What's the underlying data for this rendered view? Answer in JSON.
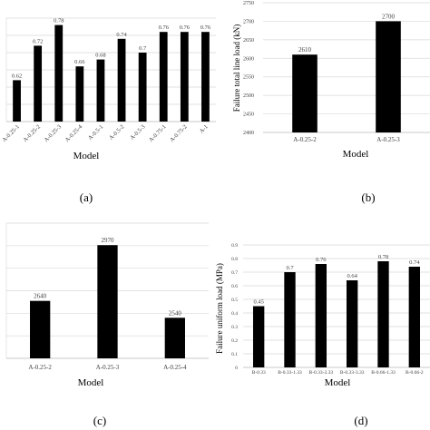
{
  "chart_data": [
    {
      "type": "bar",
      "panel_label": "(a)",
      "xlabel": "Model",
      "ylabel": "",
      "ylim": [
        0.5,
        0.8
      ],
      "grid": true,
      "categories": [
        "A-0.25-1",
        "A-0.25-2",
        "A-0.25-3",
        "A-0.25-4",
        "A-0.5-1",
        "A-0.5-2",
        "A-0.5-3",
        "A-0.75-1",
        "A-0.75-2",
        "A-1"
      ],
      "values": [
        0.62,
        0.72,
        0.78,
        0.66,
        0.68,
        0.74,
        0.7,
        0.76,
        0.76,
        0.76
      ],
      "value_labels": [
        "0.62",
        "0.72",
        "0.78",
        "0.66",
        "0.68",
        "0.74",
        "0.7",
        "0.76",
        "0.76",
        "0.76"
      ]
    },
    {
      "type": "bar",
      "panel_label": "(b)",
      "xlabel": "Model",
      "ylabel": "Failure total line load (kN)",
      "ylim": [
        2400,
        2750
      ],
      "yticks": [
        "2400",
        "2450",
        "2500",
        "2550",
        "2600",
        "2650",
        "2700",
        "2750"
      ],
      "grid": true,
      "categories": [
        "A-0.25-2",
        "A-0.25-3"
      ],
      "values": [
        2610,
        2700
      ],
      "value_labels": [
        "2610",
        "2700"
      ]
    },
    {
      "type": "bar",
      "panel_label": "(c)",
      "xlabel": "Model",
      "ylabel": "",
      "ylim": [
        2300,
        3100
      ],
      "grid": true,
      "categories": [
        "A-0.25-2",
        "A-0.25-3",
        "A-0.25-4"
      ],
      "values": [
        2640,
        2970,
        2540
      ],
      "value_labels": [
        "2640",
        "2970",
        "2540"
      ]
    },
    {
      "type": "bar",
      "panel_label": "(d)",
      "xlabel": "Model",
      "ylabel": "Failure uniform load (MPa)",
      "ylim": [
        0,
        0.9
      ],
      "yticks": [
        "0",
        "0.1",
        "0.2",
        "0.3",
        "0.4",
        "0.5",
        "0.6",
        "0.7",
        "0.8",
        "0.9"
      ],
      "grid": true,
      "categories": [
        "B-0.33",
        "B-0.33-1.33",
        "B-0.33-2.33",
        "B-0.33-3.33",
        "B-0.66-1.33",
        "B-0.66-2"
      ],
      "values": [
        0.45,
        0.7,
        0.76,
        0.64,
        0.78,
        0.74
      ],
      "value_labels": [
        "0.45",
        "0.7",
        "0.76",
        "0.64",
        "0.78",
        "0.74"
      ]
    }
  ]
}
